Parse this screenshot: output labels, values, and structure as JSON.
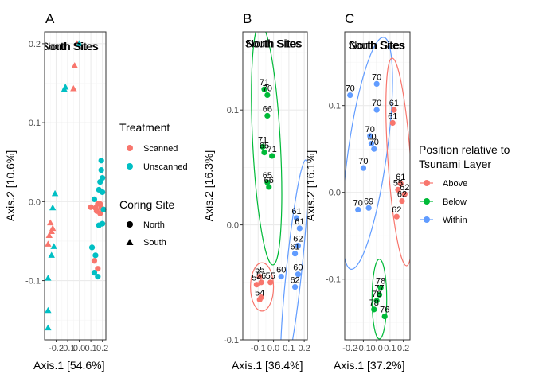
{
  "colors": {
    "scanned": "#F8766D",
    "unscanned": "#00BFC4",
    "above": "#F8766D",
    "below": "#00BA38",
    "within": "#619CFF",
    "grid_major": "#ebebeb",
    "grid_minor": "#f5f5f5",
    "border": "#333333"
  },
  "legends": {
    "treatment": {
      "title": "Treatment",
      "items": [
        {
          "label": "Scanned",
          "color": "#F8766D",
          "shape": "circle"
        },
        {
          "label": "Unscanned",
          "color": "#00BFC4",
          "shape": "circle"
        }
      ]
    },
    "coring": {
      "title": "Coring Site",
      "items": [
        {
          "label": "North",
          "shape": "circle"
        },
        {
          "label": "South",
          "shape": "triangle"
        }
      ]
    },
    "position": {
      "title_line1": "Position relative to",
      "title_line2": "Tsunami Layer",
      "items": [
        {
          "label": "Above",
          "color": "#F8766D"
        },
        {
          "label": "Below",
          "color": "#00BA38"
        },
        {
          "label": "Within",
          "color": "#619CFF"
        }
      ]
    }
  },
  "chart_data": [
    {
      "panel": "A",
      "type": "scatter",
      "xlabel": "Axis.1   [54.6%]",
      "ylabel": "Axis.2  [10.6%]",
      "xlim": [
        -0.3,
        0.23
      ],
      "ylim": [
        -0.175,
        0.215
      ],
      "xticks": [
        -0.2,
        -0.1,
        0.0,
        0.1,
        0.2
      ],
      "xtick_labels": [
        "-0.2",
        "-0.1",
        "0.0",
        "0.1",
        "0.2"
      ],
      "yticks": [
        -0.1,
        0.0,
        0.1,
        0.2
      ],
      "ytick_labels": [
        "-0.1",
        "0.0",
        "0.1",
        "0.2"
      ],
      "labels": [
        {
          "text": "North Sites",
          "x": -0.08,
          "y": 0.197
        },
        {
          "text": "South Sites",
          "x": -0.08,
          "y": 0.197
        }
      ],
      "points": [
        {
          "x": -0.02,
          "y": 0.2,
          "treatment": "scanned",
          "site": "south"
        },
        {
          "x": 0.0,
          "y": 0.2,
          "treatment": "unscanned",
          "site": "south"
        },
        {
          "x": -0.04,
          "y": 0.172,
          "treatment": "scanned",
          "site": "south"
        },
        {
          "x": -0.12,
          "y": 0.145,
          "treatment": "unscanned",
          "site": "south"
        },
        {
          "x": -0.13,
          "y": 0.142,
          "treatment": "unscanned",
          "site": "south"
        },
        {
          "x": -0.05,
          "y": 0.143,
          "treatment": "scanned",
          "site": "south"
        },
        {
          "x": -0.21,
          "y": 0.01,
          "treatment": "unscanned",
          "site": "south"
        },
        {
          "x": -0.23,
          "y": -0.008,
          "treatment": "unscanned",
          "site": "south"
        },
        {
          "x": -0.25,
          "y": -0.027,
          "treatment": "scanned",
          "site": "south"
        },
        {
          "x": -0.23,
          "y": -0.034,
          "treatment": "scanned",
          "site": "south"
        },
        {
          "x": -0.24,
          "y": -0.038,
          "treatment": "scanned",
          "site": "south"
        },
        {
          "x": -0.26,
          "y": -0.043,
          "treatment": "scanned",
          "site": "south"
        },
        {
          "x": -0.27,
          "y": -0.054,
          "treatment": "scanned",
          "site": "south"
        },
        {
          "x": -0.22,
          "y": -0.057,
          "treatment": "unscanned",
          "site": "south"
        },
        {
          "x": -0.24,
          "y": -0.068,
          "treatment": "unscanned",
          "site": "south"
        },
        {
          "x": -0.27,
          "y": -0.097,
          "treatment": "unscanned",
          "site": "south"
        },
        {
          "x": -0.27,
          "y": -0.138,
          "treatment": "unscanned",
          "site": "south"
        },
        {
          "x": -0.27,
          "y": -0.16,
          "treatment": "unscanned",
          "site": "south"
        },
        {
          "x": 0.19,
          "y": 0.052,
          "treatment": "unscanned",
          "site": "north"
        },
        {
          "x": 0.19,
          "y": 0.04,
          "treatment": "unscanned",
          "site": "north"
        },
        {
          "x": 0.18,
          "y": 0.025,
          "treatment": "unscanned",
          "site": "north"
        },
        {
          "x": 0.2,
          "y": 0.03,
          "treatment": "unscanned",
          "site": "north"
        },
        {
          "x": 0.17,
          "y": 0.015,
          "treatment": "unscanned",
          "site": "north"
        },
        {
          "x": 0.2,
          "y": 0.012,
          "treatment": "unscanned",
          "site": "north"
        },
        {
          "x": 0.13,
          "y": 0.003,
          "treatment": "unscanned",
          "site": "north"
        },
        {
          "x": 0.16,
          "y": -0.003,
          "treatment": "scanned",
          "site": "north"
        },
        {
          "x": 0.18,
          "y": -0.003,
          "treatment": "scanned",
          "site": "north"
        },
        {
          "x": 0.19,
          "y": -0.008,
          "treatment": "scanned",
          "site": "north"
        },
        {
          "x": 0.1,
          "y": -0.007,
          "treatment": "scanned",
          "site": "north"
        },
        {
          "x": 0.14,
          "y": -0.008,
          "treatment": "scanned",
          "site": "north"
        },
        {
          "x": 0.15,
          "y": -0.012,
          "treatment": "scanned",
          "site": "north"
        },
        {
          "x": 0.18,
          "y": -0.015,
          "treatment": "scanned",
          "site": "north"
        },
        {
          "x": 0.21,
          "y": -0.01,
          "treatment": "unscanned",
          "site": "north"
        },
        {
          "x": 0.2,
          "y": -0.028,
          "treatment": "unscanned",
          "site": "north"
        },
        {
          "x": 0.17,
          "y": -0.03,
          "treatment": "unscanned",
          "site": "north"
        },
        {
          "x": 0.11,
          "y": -0.058,
          "treatment": "unscanned",
          "site": "north"
        },
        {
          "x": 0.14,
          "y": -0.068,
          "treatment": "unscanned",
          "site": "north"
        },
        {
          "x": 0.13,
          "y": -0.075,
          "treatment": "scanned",
          "site": "north"
        },
        {
          "x": 0.16,
          "y": -0.085,
          "treatment": "scanned",
          "site": "north"
        },
        {
          "x": 0.13,
          "y": -0.09,
          "treatment": "unscanned",
          "site": "north"
        },
        {
          "x": 0.16,
          "y": -0.095,
          "treatment": "unscanned",
          "site": "north"
        }
      ]
    },
    {
      "panel": "B",
      "type": "scatter",
      "xlabel": "Axis.1   [36.4%]",
      "ylabel": "Axis.2  [16.3%]",
      "xlim": [
        -0.2,
        0.22
      ],
      "ylim": [
        -0.1,
        0.168
      ],
      "xticks": [
        -0.1,
        0.0,
        0.1,
        0.2
      ],
      "xtick_labels": [
        "-0.1",
        "0.0",
        "0.1",
        "0.2"
      ],
      "yticks": [
        -0.1,
        0.0,
        0.1
      ],
      "ytick_labels": [
        "-0.1",
        "0.0",
        "0.1"
      ],
      "labels": [
        {
          "text": "North Sites",
          "x": 0.0,
          "y": 0.158
        },
        {
          "text": "South Sites",
          "x": 0.0,
          "y": 0.158
        }
      ],
      "points": [
        {
          "x": -0.06,
          "y": 0.118,
          "group": "below",
          "label": "71"
        },
        {
          "x": -0.04,
          "y": 0.113,
          "group": "below",
          "label": "70"
        },
        {
          "x": -0.04,
          "y": 0.095,
          "group": "below",
          "label": "66"
        },
        {
          "x": -0.07,
          "y": 0.068,
          "group": "below",
          "label": "71"
        },
        {
          "x": -0.06,
          "y": 0.063,
          "group": "below",
          "label": "65"
        },
        {
          "x": -0.01,
          "y": 0.06,
          "group": "below",
          "label": "71"
        },
        {
          "x": -0.04,
          "y": 0.037,
          "group": "below",
          "label": "65"
        },
        {
          "x": -0.03,
          "y": 0.033,
          "group": "below",
          "label": "66"
        },
        {
          "x": 0.15,
          "y": 0.006,
          "group": "within",
          "label": "61"
        },
        {
          "x": 0.17,
          "y": -0.003,
          "group": "within",
          "label": "61"
        },
        {
          "x": 0.16,
          "y": -0.018,
          "group": "within",
          "label": "62"
        },
        {
          "x": 0.14,
          "y": -0.025,
          "group": "within",
          "label": "61"
        },
        {
          "x": 0.16,
          "y": -0.043,
          "group": "within",
          "label": "60"
        },
        {
          "x": 0.05,
          "y": -0.045,
          "group": "within",
          "label": "60"
        },
        {
          "x": 0.14,
          "y": -0.054,
          "group": "within",
          "label": "62"
        },
        {
          "x": -0.09,
          "y": -0.045,
          "group": "above",
          "label": "55"
        },
        {
          "x": -0.08,
          "y": -0.05,
          "group": "above",
          "label": "56"
        },
        {
          "x": -0.11,
          "y": -0.052,
          "group": "above",
          "label": "54"
        },
        {
          "x": -0.02,
          "y": -0.05,
          "group": "above",
          "label": "55"
        },
        {
          "x": -0.09,
          "y": -0.065,
          "group": "above",
          "label": "54"
        },
        {
          "x": -0.08,
          "y": -0.063,
          "group": "above",
          "label": ""
        }
      ],
      "ellipses": [
        {
          "group": "below",
          "cx": -0.045,
          "cy": 0.07,
          "rx": 0.09,
          "ry": 0.105,
          "rotation": -3
        },
        {
          "group": "within",
          "cx": 0.135,
          "cy": -0.038,
          "rx": 0.05,
          "ry": 0.095,
          "rotation": 6
        },
        {
          "group": "above",
          "cx": -0.075,
          "cy": -0.054,
          "rx": 0.075,
          "ry": 0.021,
          "rotation": 0
        }
      ]
    },
    {
      "panel": "C",
      "type": "scatter",
      "xlabel": "Axis.1   [37.2%]",
      "ylabel": "Axis.2  [16.1%]",
      "xlim": [
        -0.24,
        0.25
      ],
      "ylim": [
        -0.17,
        0.185
      ],
      "xticks": [
        -0.2,
        -0.1,
        0.0,
        0.1,
        0.2
      ],
      "xtick_labels": [
        "-0.2",
        "-0.1",
        "0.0",
        "0.1",
        "0.2"
      ],
      "yticks": [
        -0.1,
        0.0,
        0.1
      ],
      "ytick_labels": [
        "-0.1",
        "0.0",
        "0.1"
      ],
      "labels": [
        {
          "text": "North Sites",
          "x": 0.0,
          "y": 0.17
        },
        {
          "text": "South Sites",
          "x": 0.0,
          "y": 0.17
        }
      ],
      "points": [
        {
          "x": -0.2,
          "y": 0.112,
          "group": "within",
          "label": "70"
        },
        {
          "x": 0.0,
          "y": 0.125,
          "group": "within",
          "label": "70"
        },
        {
          "x": 0.0,
          "y": 0.095,
          "group": "within",
          "label": "70"
        },
        {
          "x": -0.05,
          "y": 0.065,
          "group": "within",
          "label": "70"
        },
        {
          "x": -0.04,
          "y": 0.056,
          "group": "within",
          "label": "70"
        },
        {
          "x": -0.02,
          "y": 0.05,
          "group": "within",
          "label": "70"
        },
        {
          "x": -0.1,
          "y": 0.028,
          "group": "within",
          "label": "70"
        },
        {
          "x": -0.14,
          "y": -0.02,
          "group": "within",
          "label": "70"
        },
        {
          "x": -0.06,
          "y": -0.018,
          "group": "within",
          "label": "69"
        },
        {
          "x": 0.13,
          "y": 0.095,
          "group": "above",
          "label": "61"
        },
        {
          "x": 0.12,
          "y": 0.08,
          "group": "above",
          "label": "61"
        },
        {
          "x": 0.18,
          "y": 0.01,
          "group": "above",
          "label": "61"
        },
        {
          "x": 0.16,
          "y": 0.003,
          "group": "above",
          "label": "55"
        },
        {
          "x": 0.21,
          "y": -0.002,
          "group": "above",
          "label": "62"
        },
        {
          "x": 0.19,
          "y": -0.01,
          "group": "above",
          "label": "62"
        },
        {
          "x": 0.15,
          "y": -0.028,
          "group": "above",
          "label": "62"
        },
        {
          "x": 0.03,
          "y": -0.11,
          "group": "below",
          "label": "78"
        },
        {
          "x": 0.02,
          "y": -0.118,
          "group": "below",
          "label": "77"
        },
        {
          "x": 0.0,
          "y": -0.125,
          "group": "below",
          "label": "78"
        },
        {
          "x": -0.02,
          "y": -0.135,
          "group": "below",
          "label": "78"
        },
        {
          "x": 0.06,
          "y": -0.143,
          "group": "below",
          "label": "76"
        }
      ],
      "ellipses": [
        {
          "group": "within",
          "cx": -0.07,
          "cy": 0.045,
          "rx": 0.145,
          "ry": 0.135,
          "rotation": 8
        },
        {
          "group": "above",
          "cx": 0.17,
          "cy": 0.035,
          "rx": 0.085,
          "ry": 0.12,
          "rotation": -4
        },
        {
          "group": "below",
          "cx": 0.02,
          "cy": -0.123,
          "rx": 0.055,
          "ry": 0.046,
          "rotation": 0
        }
      ]
    }
  ]
}
